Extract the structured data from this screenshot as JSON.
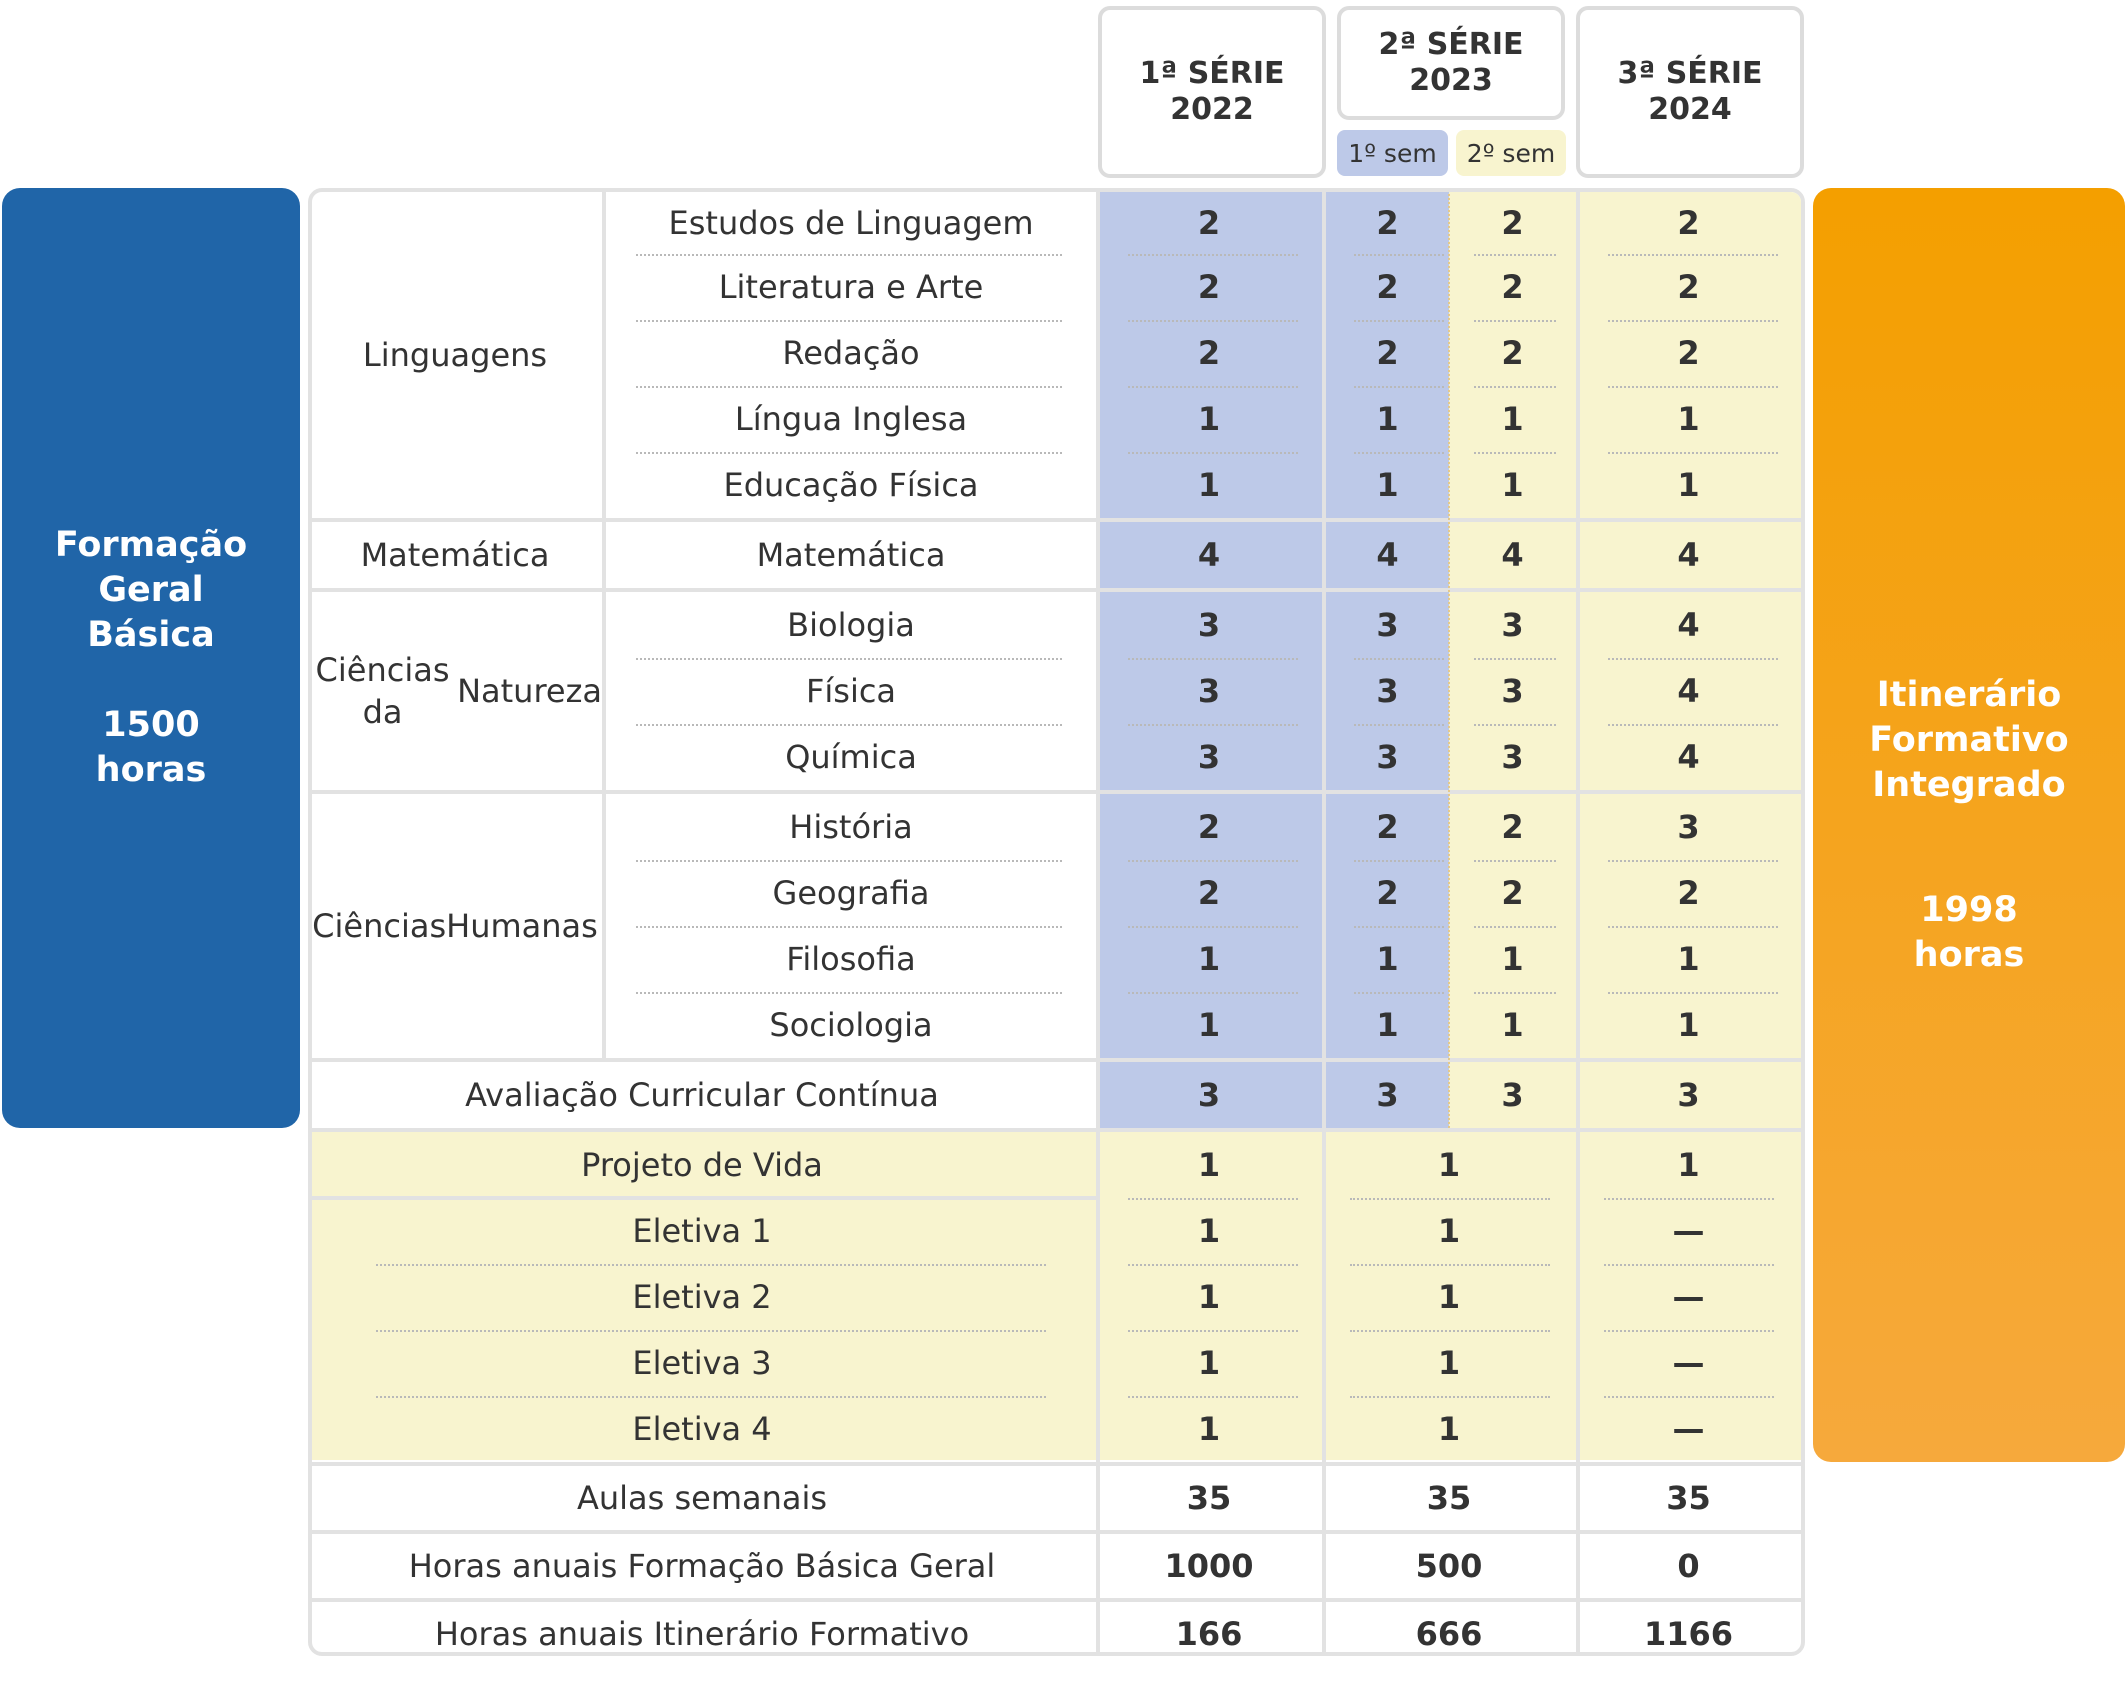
{
  "headers": {
    "s1": [
      "1ª SÉRIE",
      "2022"
    ],
    "s2": [
      "2ª SÉRIE",
      "2023"
    ],
    "s3": [
      "3ª SÉRIE",
      "2024"
    ],
    "sem1": "1º sem",
    "sem2": "2º sem"
  },
  "left_box": {
    "title": [
      "Formação",
      "Geral",
      "Básica"
    ],
    "hours": [
      "1500",
      "horas"
    ]
  },
  "right_box": {
    "title": [
      "Itinerário",
      "Formativo",
      "Integrado"
    ],
    "hours": [
      "1998",
      "horas"
    ]
  },
  "colors": {
    "fgb_blue": "#2065a8",
    "if_orange": "#f4a02a",
    "blue_fill": "#bdc9e8",
    "yellow_fill": "#f8f4cf",
    "grid": "#e2e2e2"
  },
  "groups": [
    {
      "name": [
        "Linguagens"
      ],
      "subjects": [
        {
          "name": "Estudos de Linguagem",
          "v": [
            "2",
            "2",
            "2",
            "2"
          ]
        },
        {
          "name": "Literatura e Arte",
          "v": [
            "2",
            "2",
            "2",
            "2"
          ]
        },
        {
          "name": "Redação",
          "v": [
            "2",
            "2",
            "2",
            "2"
          ]
        },
        {
          "name": "Língua Inglesa",
          "v": [
            "1",
            "1",
            "1",
            "1"
          ]
        },
        {
          "name": "Educação Física",
          "v": [
            "1",
            "1",
            "1",
            "1"
          ]
        }
      ]
    },
    {
      "name": [
        "Matemática"
      ],
      "subjects": [
        {
          "name": "Matemática",
          "v": [
            "4",
            "4",
            "4",
            "4"
          ]
        }
      ]
    },
    {
      "name": [
        "Ciências da",
        "Natureza"
      ],
      "subjects": [
        {
          "name": "Biologia",
          "v": [
            "3",
            "3",
            "3",
            "4"
          ]
        },
        {
          "name": "Física",
          "v": [
            "3",
            "3",
            "3",
            "4"
          ]
        },
        {
          "name": "Química",
          "v": [
            "3",
            "3",
            "3",
            "4"
          ]
        }
      ]
    },
    {
      "name": [
        "Ciências",
        "Humanas"
      ],
      "subjects": [
        {
          "name": "História",
          "v": [
            "2",
            "2",
            "2",
            "3"
          ]
        },
        {
          "name": "Geografia",
          "v": [
            "2",
            "2",
            "2",
            "2"
          ]
        },
        {
          "name": "Filosofia",
          "v": [
            "1",
            "1",
            "1",
            "1"
          ]
        },
        {
          "name": "Sociologia",
          "v": [
            "1",
            "1",
            "1",
            "1"
          ]
        }
      ]
    }
  ],
  "acc": {
    "name": "Avaliação Curricular Contínua",
    "v": [
      "3",
      "3",
      "3",
      "3"
    ]
  },
  "itinerary": [
    {
      "name": "Projeto de Vida",
      "v": [
        "1",
        "1",
        "1"
      ]
    },
    {
      "name": "Eletiva 1",
      "v": [
        "1",
        "1",
        "—"
      ]
    },
    {
      "name": "Eletiva 2",
      "v": [
        "1",
        "1",
        "—"
      ]
    },
    {
      "name": "Eletiva 3",
      "v": [
        "1",
        "1",
        "—"
      ]
    },
    {
      "name": "Eletiva 4",
      "v": [
        "1",
        "1",
        "—"
      ]
    }
  ],
  "totals": [
    {
      "name": "Aulas semanais",
      "v": [
        "35",
        "35",
        "35"
      ]
    },
    {
      "name": "Horas anuais Formação Básica Geral",
      "v": [
        "1000",
        "500",
        "0"
      ]
    },
    {
      "name": "Horas anuais Itinerário Formativo",
      "v": [
        "166",
        "666",
        "1166"
      ]
    }
  ]
}
